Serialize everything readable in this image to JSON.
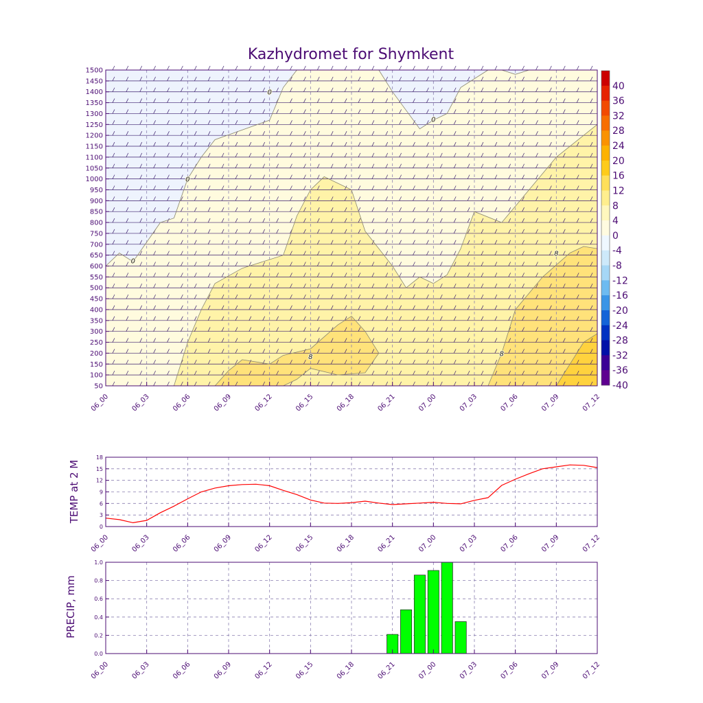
{
  "chart_data": [
    {
      "type": "heatmap",
      "title": "Kazhydromet for Shymkent",
      "xlabel": "",
      "ylabel": "",
      "x_ticks": [
        "06_00",
        "06_03",
        "06_06",
        "06_09",
        "06_12",
        "06_15",
        "06_18",
        "06_21",
        "07_00",
        "07_03",
        "07_06",
        "07_09",
        "07_12"
      ],
      "y_ticks": [
        50,
        100,
        150,
        200,
        250,
        300,
        350,
        400,
        450,
        500,
        550,
        600,
        650,
        700,
        750,
        800,
        850,
        900,
        950,
        1000,
        1050,
        1100,
        1150,
        1200,
        1250,
        1300,
        1350,
        1400,
        1450,
        1500
      ],
      "ylim": [
        50,
        1500
      ],
      "colorbar_labels": [
        "40",
        "36",
        "32",
        "28",
        "24",
        "20",
        "16",
        "12",
        "8",
        "4",
        "0",
        "-4",
        "-8",
        "-12",
        "-16",
        "-20",
        "-24",
        "-28",
        "-32",
        "-36",
        "-40"
      ],
      "colorbar_colors": [
        "#cc0000",
        "#e62200",
        "#f24a00",
        "#f76e00",
        "#fa9200",
        "#fcb200",
        "#fecb1a",
        "#ffdf5a",
        "#ffee8e",
        "#fff7be",
        "#fffbe0",
        "#eef7ff",
        "#cde9fa",
        "#a6d7f6",
        "#6dbbf0",
        "#3a95e6",
        "#1464d8",
        "#0032c2",
        "#0010a8",
        "#3a0096",
        "#5e0090"
      ],
      "contour_labels": [
        {
          "text": "0",
          "x": "06_02",
          "y": 625
        },
        {
          "text": "0",
          "x": "06_06",
          "y": 1000
        },
        {
          "text": "0",
          "x": "06_12",
          "y": 1400
        },
        {
          "text": "0",
          "x": "07_00",
          "y": 1275
        },
        {
          "text": "8",
          "x": "06_15",
          "y": 185
        },
        {
          "text": "8",
          "x": "07_05",
          "y": 200
        },
        {
          "text": "8",
          "x": "07_09",
          "y": 660
        }
      ],
      "contours": [
        {
          "level": 0,
          "points": [
            [
              "06_00",
              450
            ],
            [
              "06_00",
              600
            ],
            [
              "06_01",
              660
            ],
            [
              "06_02",
              620
            ],
            [
              "06_04",
              800
            ],
            [
              "06_05",
              820
            ],
            [
              "06_06",
              1000
            ],
            [
              "06_07",
              1100
            ],
            [
              "06_08",
              1180
            ],
            [
              "06_12",
              1270
            ],
            [
              "06_13",
              1420
            ],
            [
              "06_14",
              1500
            ]
          ],
          "closing": "top-left"
        },
        {
          "level": 0,
          "points": [
            [
              "06_20",
              1500
            ],
            [
              "06_21",
              1400
            ],
            [
              "06_23",
              1230
            ],
            [
              "07_00",
              1270
            ],
            [
              "07_01",
              1300
            ],
            [
              "07_02",
              1420
            ],
            [
              "07_04",
              1500
            ]
          ],
          "closing": "top"
        },
        {
          "level": 0,
          "points": [
            [
              "07_05",
              1500
            ],
            [
              "07_06",
              1480
            ],
            [
              "07_07",
              1500
            ]
          ],
          "closing": "top"
        },
        {
          "level": 4,
          "points": [
            [
              "06_05",
              50
            ],
            [
              "06_06",
              250
            ],
            [
              "06_07",
              400
            ],
            [
              "06_08",
              520
            ],
            [
              "06_10",
              590
            ],
            [
              "06_13",
              650
            ],
            [
              "06_14",
              830
            ],
            [
              "06_15",
              950
            ],
            [
              "06_16",
              1010
            ],
            [
              "06_18",
              950
            ],
            [
              "06_19",
              760
            ],
            [
              "06_21",
              600
            ],
            [
              "06_22",
              500
            ],
            [
              "06_23",
              550
            ],
            [
              "07_00",
              520
            ],
            [
              "07_01",
              560
            ],
            [
              "07_02",
              680
            ],
            [
              "07_03",
              850
            ],
            [
              "07_05",
              800
            ],
            [
              "07_07",
              950
            ],
            [
              "07_09",
              1100
            ],
            [
              "07_12",
              1250
            ]
          ],
          "closing": "bottom-right"
        },
        {
          "level": 8,
          "points": [
            [
              "06_08",
              50
            ],
            [
              "06_09",
              120
            ],
            [
              "06_10",
              170
            ],
            [
              "06_12",
              150
            ],
            [
              "06_13",
              190
            ],
            [
              "06_15",
              220
            ],
            [
              "06_17",
              330
            ],
            [
              "06_18",
              370
            ],
            [
              "06_19",
              300
            ],
            [
              "06_20",
              200
            ],
            [
              "06_19",
              110
            ],
            [
              "06_17",
              100
            ],
            [
              "06_15",
              130
            ],
            [
              "06_14",
              80
            ],
            [
              "06_13",
              50
            ]
          ],
          "closing": "bottom"
        },
        {
          "level": 8,
          "points": [
            [
              "07_04",
              50
            ],
            [
              "07_05",
              200
            ],
            [
              "07_06",
              400
            ],
            [
              "07_08",
              550
            ],
            [
              "07_10",
              660
            ],
            [
              "07_11",
              690
            ],
            [
              "07_12",
              680
            ]
          ],
          "closing": "bottom-right"
        },
        {
          "level": 12,
          "points": [
            [
              "07_09",
              50
            ],
            [
              "07_10",
              150
            ],
            [
              "07_11",
              250
            ],
            [
              "07_12",
              290
            ]
          ],
          "closing": "bottom-right"
        }
      ]
    },
    {
      "type": "line",
      "title": "",
      "xlabel": "",
      "ylabel": "TEMP at 2 M",
      "x": [
        "06_00",
        "06_01",
        "06_02",
        "06_03",
        "06_04",
        "06_05",
        "06_06",
        "06_07",
        "06_08",
        "06_09",
        "06_10",
        "06_11",
        "06_12",
        "06_13",
        "06_14",
        "06_15",
        "06_16",
        "06_17",
        "06_18",
        "06_19",
        "06_20",
        "06_21",
        "06_22",
        "06_23",
        "07_00",
        "07_01",
        "07_02",
        "07_03",
        "07_04",
        "07_05",
        "07_06",
        "07_07",
        "07_08",
        "07_09",
        "07_10",
        "07_11",
        "07_12"
      ],
      "series": [
        {
          "values": [
            2.2,
            1.8,
            1.0,
            1.6,
            3.6,
            5.3,
            7.2,
            9.0,
            10.0,
            10.6,
            10.9,
            11.0,
            10.6,
            9.4,
            8.3,
            6.9,
            6.1,
            6.0,
            6.2,
            6.6,
            6.1,
            5.7,
            5.9,
            6.1,
            6.3,
            6.0,
            5.9,
            6.8,
            7.5,
            10.7,
            12.3,
            13.7,
            15.0,
            15.5,
            16.0,
            15.9,
            15.3
          ]
        }
      ],
      "x_ticks": [
        "06_00",
        "06_03",
        "06_06",
        "06_09",
        "06_12",
        "06_15",
        "06_18",
        "06_21",
        "07_00",
        "07_03",
        "07_06",
        "07_09",
        "07_12"
      ],
      "y_ticks": [
        0,
        3,
        6,
        9,
        12,
        15,
        18
      ],
      "ylim": [
        0,
        18
      ],
      "colors": [
        "#ff0000"
      ],
      "grid": true
    },
    {
      "type": "bar",
      "title": "",
      "xlabel": "",
      "ylabel": "PRECIP, mm",
      "categories": [
        "06_21",
        "06_22",
        "06_23",
        "07_00",
        "07_01",
        "07_02"
      ],
      "series": [
        {
          "values": [
            0.21,
            0.48,
            0.86,
            0.91,
            1.0,
            0.35
          ]
        }
      ],
      "x_ticks": [
        "06_00",
        "06_03",
        "06_06",
        "06_09",
        "06_12",
        "06_15",
        "06_18",
        "06_21",
        "07_00",
        "07_03",
        "07_06",
        "07_09",
        "07_12"
      ],
      "y_ticks": [
        "0.0",
        "0.2",
        "0.4",
        "0.6",
        "0.8",
        "1.0"
      ],
      "ylim": [
        0,
        1.0
      ],
      "colors": [
        "#00ff00"
      ],
      "grid": true
    }
  ]
}
